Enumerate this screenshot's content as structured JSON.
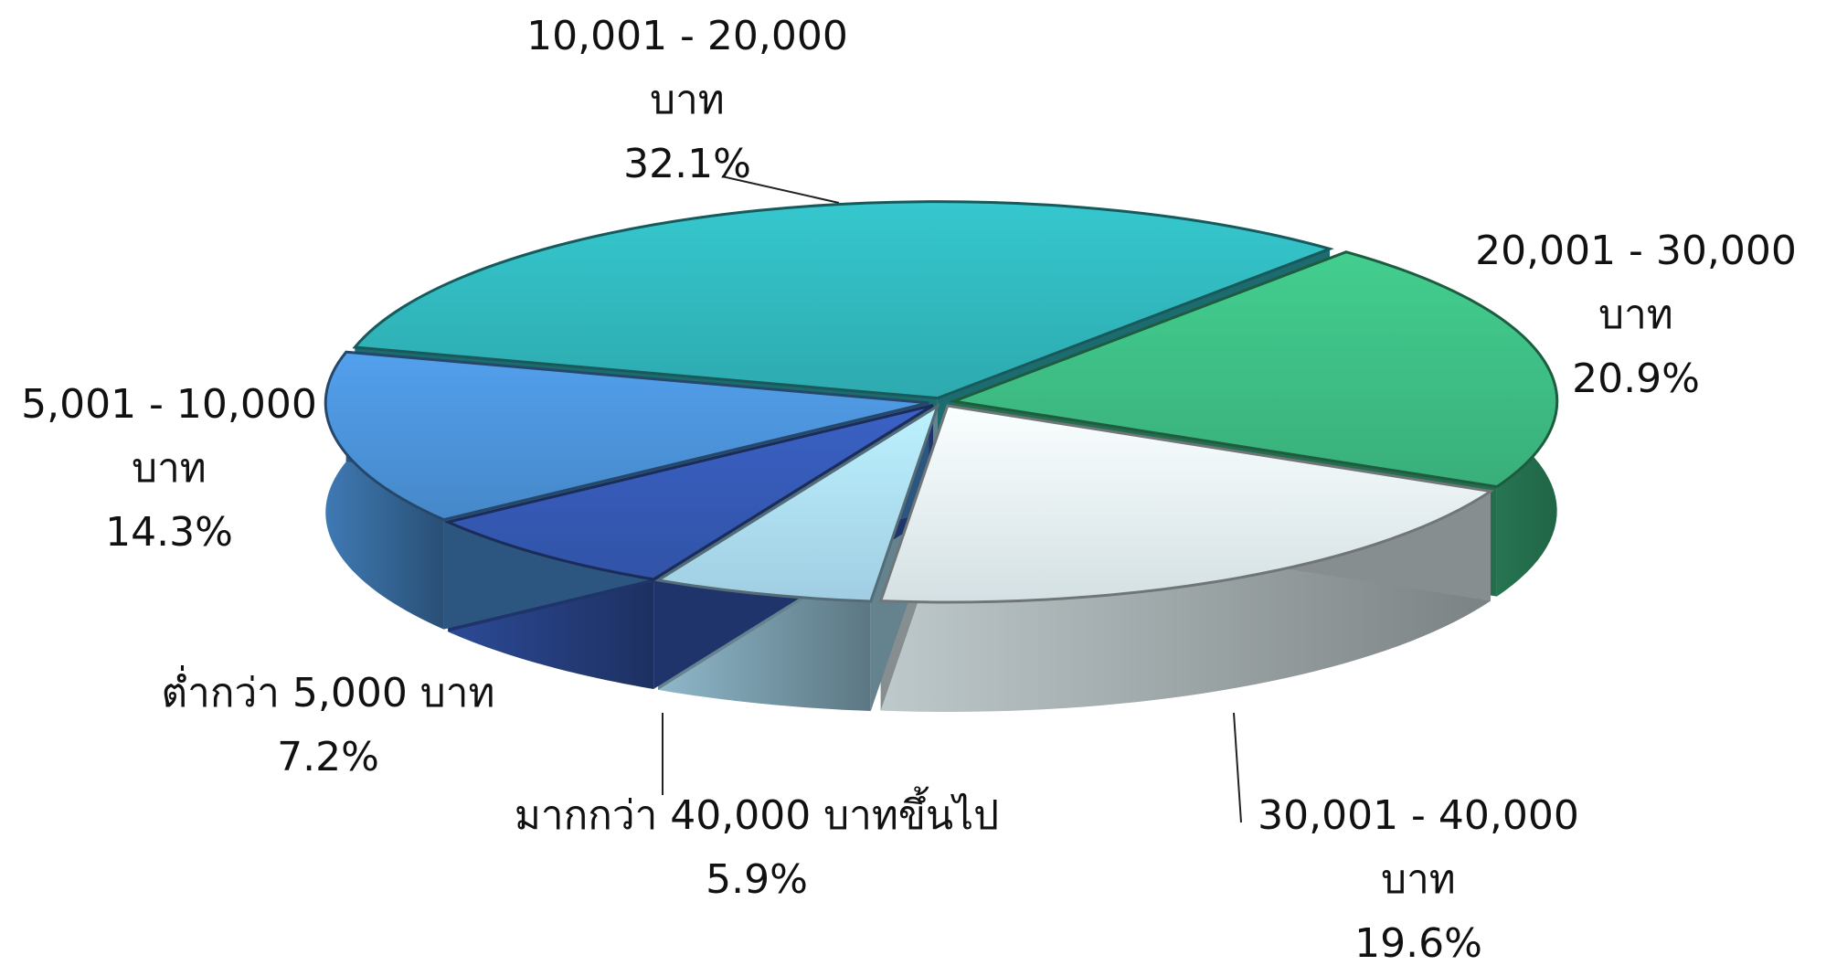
{
  "chart_data": {
    "type": "pie3d",
    "categories": [
      "10,001 - 20,000 บาท",
      "20,001 - 30,000 บาท",
      "30,001 - 40,000 บาท",
      "มากกว่า 40,000 บาทขึ้นไป",
      "ต่ำกว่า 5,000 บาท",
      "5,001 - 10,000 บาท"
    ],
    "values": [
      32.1,
      20.9,
      19.6,
      5.9,
      7.2,
      14.3
    ],
    "value_labels": [
      "32.1%",
      "20.9%",
      "19.6%",
      "5.9%",
      "7.2%",
      "14.3%"
    ],
    "colors": [
      "#2fb3b8",
      "#3cb880",
      "#dfecef",
      "#a8d8ee",
      "#3457b0",
      "#4a8fd4"
    ]
  }
}
